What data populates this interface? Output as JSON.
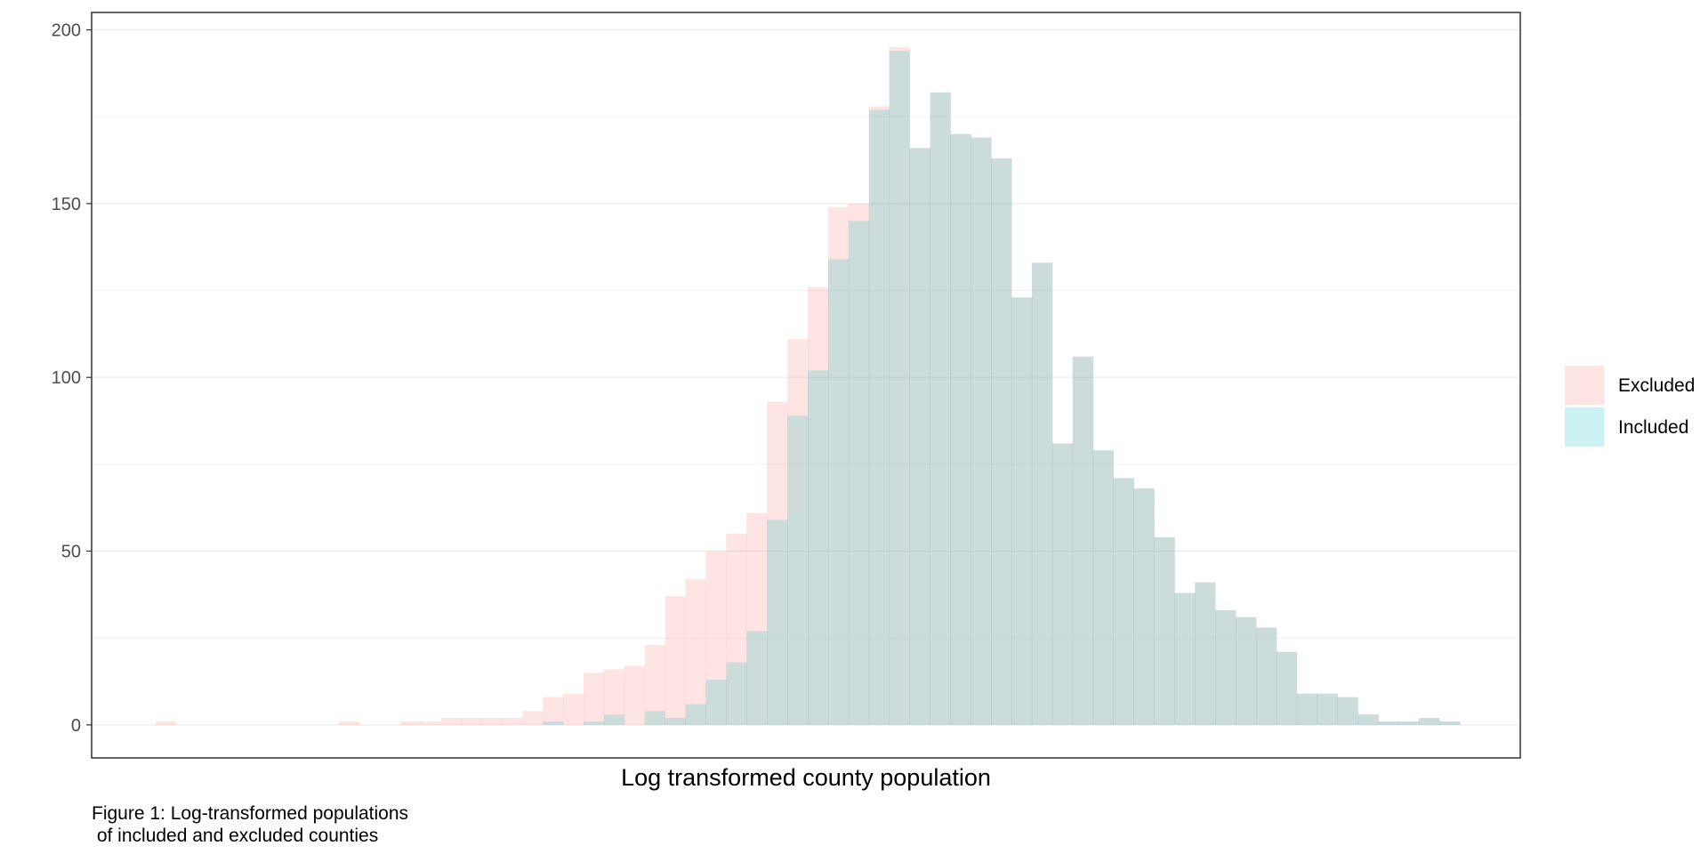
{
  "chart_data": {
    "type": "histogram",
    "title": "",
    "xlabel": "Log transformed county population",
    "ylabel": "",
    "ylim": [
      -9.5,
      205
    ],
    "yticks": [
      0,
      50,
      100,
      150,
      200
    ],
    "xticks_shown": false,
    "grid": true,
    "legend_position": "right",
    "bin_count": 64,
    "series": [
      {
        "name": "Excluded",
        "color": "#F8766D",
        "opacity": 0.2,
        "values": [
          1,
          0,
          0,
          0,
          0,
          0,
          0,
          0,
          0,
          1,
          0,
          0,
          1,
          1,
          2,
          2,
          2,
          2,
          4,
          8,
          9,
          15,
          16,
          17,
          23,
          37,
          42,
          50,
          55,
          61,
          93,
          111,
          126,
          149,
          150,
          178,
          195,
          166,
          182,
          170,
          169,
          163,
          123,
          133,
          81,
          106,
          79,
          71,
          68,
          54,
          38,
          41,
          33,
          31,
          28,
          21,
          9,
          9,
          8,
          3,
          1,
          1,
          2,
          1
        ]
      },
      {
        "name": "Included",
        "color": "#00BFC4",
        "opacity": 0.2,
        "values": [
          0,
          0,
          0,
          0,
          0,
          0,
          0,
          0,
          0,
          0,
          0,
          0,
          0,
          0,
          0,
          0,
          0,
          0,
          0,
          1,
          0,
          1,
          3,
          0,
          4,
          2,
          6,
          13,
          18,
          27,
          59,
          89,
          102,
          134,
          145,
          177,
          194,
          166,
          182,
          170,
          169,
          163,
          123,
          133,
          81,
          106,
          79,
          71,
          68,
          54,
          38,
          41,
          33,
          31,
          28,
          21,
          9,
          9,
          8,
          3,
          1,
          1,
          2,
          1
        ]
      }
    ]
  },
  "caption": "Figure 1: Log-transformed populations\n of included and excluded counties"
}
